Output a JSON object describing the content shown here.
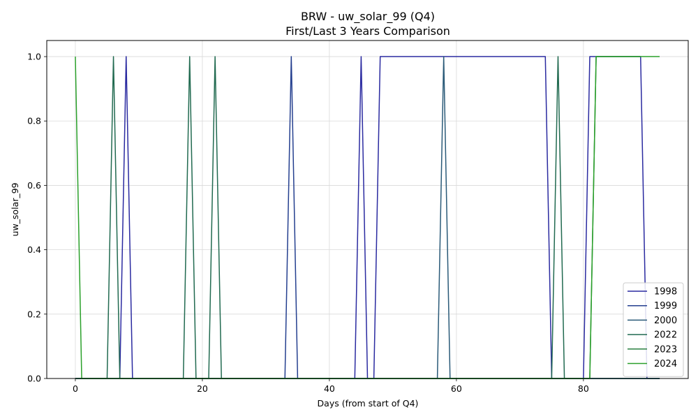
{
  "chart_data": {
    "type": "line",
    "title": "BRW - uw_solar_99 (Q4)",
    "subtitle": "First/Last 3 Years Comparison",
    "xlabel": "Days (from start of Q4)",
    "ylabel": "uw_solar_99",
    "xlim": [
      -4.5,
      96.5
    ],
    "ylim": [
      0,
      1.05
    ],
    "xticks": [
      0,
      20,
      40,
      60,
      80
    ],
    "yticks": [
      0.0,
      0.2,
      0.4,
      0.6,
      0.8,
      1.0
    ],
    "ytick_labels": [
      "0.0",
      "0.2",
      "0.4",
      "0.6",
      "0.8",
      "1.0"
    ],
    "grid": true,
    "legend_position": "lower-right",
    "series": [
      {
        "name": "1998",
        "color": "#2a2aa0",
        "x": [
          0,
          7,
          8,
          9,
          44,
          45,
          46,
          47,
          48,
          74,
          75,
          80,
          81,
          89,
          90,
          92
        ],
        "y": [
          0,
          0,
          1,
          0,
          0,
          1,
          0,
          0,
          1,
          1,
          0,
          0,
          1,
          1,
          0,
          0
        ]
      },
      {
        "name": "1999",
        "color": "#243f8f",
        "x": [
          0,
          33,
          34,
          35,
          92
        ],
        "y": [
          0,
          0,
          1,
          0,
          0
        ]
      },
      {
        "name": "2000",
        "color": "#2a5a78",
        "x": [
          0,
          57,
          58,
          59,
          92
        ],
        "y": [
          0,
          0,
          1,
          0,
          0
        ]
      },
      {
        "name": "2022",
        "color": "#216a50",
        "x": [
          0,
          5,
          6,
          7,
          17,
          18,
          19,
          21,
          22,
          23,
          75,
          76,
          77,
          92
        ],
        "y": [
          0,
          0,
          1,
          0,
          0,
          1,
          0,
          0,
          1,
          0,
          0,
          1,
          0,
          0
        ]
      },
      {
        "name": "2023",
        "color": "#2a8040",
        "x": [
          0,
          81,
          82,
          89
        ],
        "y": [
          0,
          0,
          1,
          1
        ]
      },
      {
        "name": "2024",
        "color": "#2aa02a",
        "x": [
          0,
          1,
          81,
          82,
          92
        ],
        "y": [
          1,
          0,
          0,
          1,
          1
        ]
      }
    ]
  }
}
